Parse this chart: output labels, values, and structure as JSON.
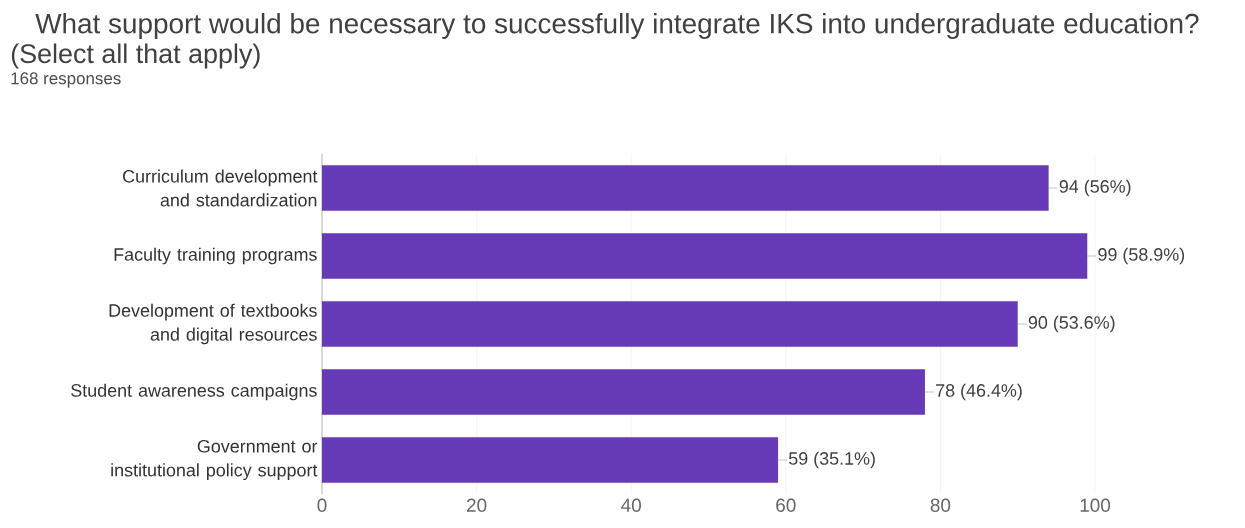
{
  "chart_data": {
    "type": "bar",
    "orientation": "horizontal",
    "title": "What support would be necessary to successfully integrate IKS into undergraduate education?",
    "subtitle": "(Select all that apply)",
    "annotations": [
      "168 responses"
    ],
    "categories": [
      "Curriculum development and standardization",
      "Faculty training programs",
      "Development of textbooks and digital resources",
      "Student awareness campaigns",
      "Government or institutional policy support"
    ],
    "values": [
      94,
      99,
      90,
      78,
      59
    ],
    "value_labels": [
      "94 (56%)",
      "99 (58.9%)",
      "90 (53.6%)",
      "78 (46.4%)",
      "59 (35.1%)"
    ],
    "color": "#673ab7",
    "xlim": [
      0,
      100
    ],
    "xticks": [
      0,
      20,
      40,
      60,
      80,
      100
    ],
    "grid": "x"
  }
}
